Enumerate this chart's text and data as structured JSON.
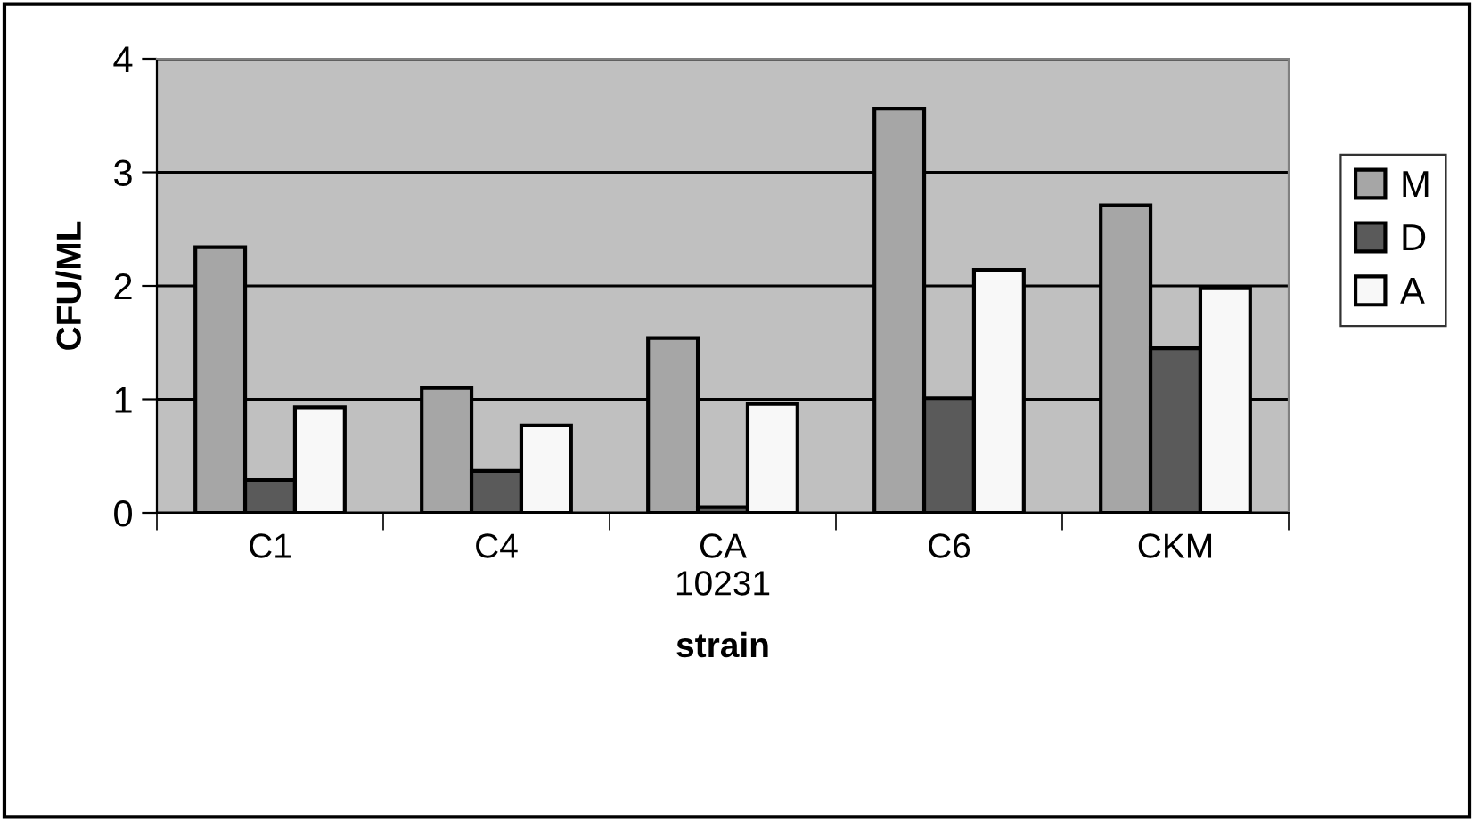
{
  "chart_data": {
    "type": "bar",
    "xlabel": "strain",
    "ylabel": "CFU/ML",
    "categories": [
      "C1",
      "C4",
      "CA\n10231",
      "C6",
      "CKM"
    ],
    "series": [
      {
        "name": "M",
        "color": "#a6a6a6",
        "values": [
          2.34,
          1.1,
          1.54,
          3.56,
          2.71
        ]
      },
      {
        "name": "D",
        "color": "#5a5a5a",
        "values": [
          0.29,
          0.37,
          0.05,
          1.01,
          1.45
        ]
      },
      {
        "name": "A",
        "color": "#f8f8f8",
        "values": [
          0.93,
          0.77,
          0.96,
          2.14,
          1.98
        ]
      }
    ],
    "ylim": [
      0,
      4
    ],
    "yticks": [
      0,
      1,
      2,
      3,
      4
    ],
    "grid": "y",
    "legend": "right"
  }
}
